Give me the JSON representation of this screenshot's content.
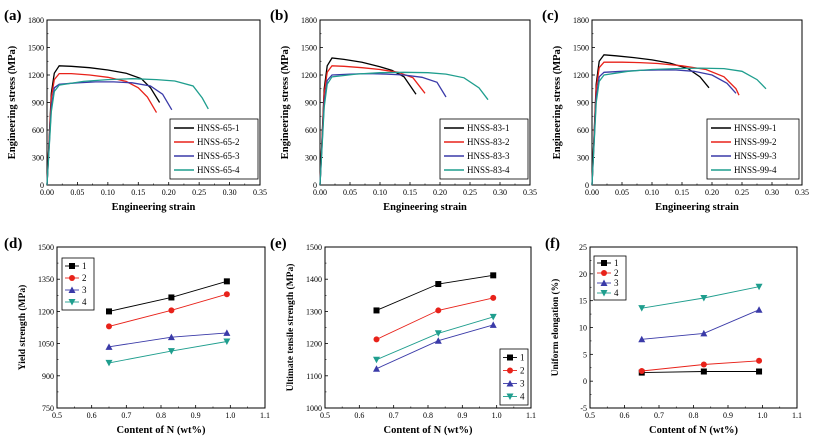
{
  "colors": {
    "black": "#000000",
    "red": "#e8221a",
    "blue": "#3a3aa8",
    "teal": "#1f9e8e",
    "navy": "#2c3e8c",
    "lightblue": "#7b8fd6"
  },
  "chart_data": [
    {
      "panel": "(a)",
      "type": "line",
      "xlabel": "Engineering strain",
      "ylabel": "Engineering stress (MPa)",
      "xlim": [
        0,
        0.35
      ],
      "ylim": [
        0,
        1800
      ],
      "xticks": [
        "0.00",
        "0.05",
        "0.10",
        "0.15",
        "0.20",
        "0.25",
        "0.30",
        "0.35"
      ],
      "yticks": [
        "0",
        "300",
        "600",
        "900",
        "1200",
        "1500",
        "1800"
      ],
      "legend_position": "lower-right",
      "series": [
        {
          "name": "HNSS-65-1",
          "color": "#000000",
          "x": [
            0,
            0.007,
            0.012,
            0.02,
            0.04,
            0.07,
            0.1,
            0.13,
            0.155,
            0.17,
            0.185
          ],
          "y": [
            0,
            1000,
            1220,
            1300,
            1295,
            1280,
            1255,
            1220,
            1160,
            1060,
            900
          ]
        },
        {
          "name": "HNSS-65-2",
          "color": "#e8221a",
          "x": [
            0,
            0.007,
            0.012,
            0.02,
            0.04,
            0.07,
            0.1,
            0.13,
            0.15,
            0.165,
            0.18
          ],
          "y": [
            0,
            950,
            1150,
            1215,
            1215,
            1200,
            1175,
            1130,
            1060,
            960,
            790
          ]
        },
        {
          "name": "HNSS-65-3",
          "color": "#3a3aa8",
          "x": [
            0,
            0.007,
            0.012,
            0.02,
            0.05,
            0.08,
            0.11,
            0.14,
            0.17,
            0.19,
            0.205
          ],
          "y": [
            0,
            850,
            1060,
            1100,
            1115,
            1125,
            1125,
            1115,
            1080,
            990,
            820
          ]
        },
        {
          "name": "HNSS-65-4",
          "color": "#1f9e8e",
          "x": [
            0,
            0.007,
            0.012,
            0.02,
            0.06,
            0.1,
            0.14,
            0.18,
            0.21,
            0.24,
            0.255,
            0.265
          ],
          "y": [
            0,
            800,
            1020,
            1090,
            1130,
            1150,
            1160,
            1150,
            1135,
            1080,
            950,
            830
          ]
        }
      ]
    },
    {
      "panel": "(b)",
      "type": "line",
      "xlabel": "Engineering strain",
      "ylabel": "Engineering stress (MPa)",
      "xlim": [
        0,
        0.35
      ],
      "ylim": [
        0,
        1800
      ],
      "xticks": [
        "0.00",
        "0.05",
        "0.10",
        "0.15",
        "0.20",
        "0.25",
        "0.30",
        "0.35"
      ],
      "yticks": [
        "0",
        "300",
        "600",
        "900",
        "1200",
        "1500",
        "1800"
      ],
      "legend_position": "lower-right",
      "series": [
        {
          "name": "HNSS-83-1",
          "color": "#000000",
          "x": [
            0,
            0.007,
            0.012,
            0.02,
            0.04,
            0.07,
            0.1,
            0.12,
            0.14,
            0.16
          ],
          "y": [
            0,
            1050,
            1300,
            1385,
            1370,
            1340,
            1290,
            1250,
            1180,
            990
          ]
        },
        {
          "name": "HNSS-83-2",
          "color": "#e8221a",
          "x": [
            0,
            0.007,
            0.012,
            0.02,
            0.04,
            0.07,
            0.1,
            0.13,
            0.155,
            0.175
          ],
          "y": [
            0,
            1000,
            1230,
            1300,
            1295,
            1280,
            1260,
            1230,
            1170,
            1000
          ]
        },
        {
          "name": "HNSS-83-3",
          "color": "#3a3aa8",
          "x": [
            0,
            0.007,
            0.012,
            0.02,
            0.05,
            0.08,
            0.11,
            0.14,
            0.17,
            0.195,
            0.21
          ],
          "y": [
            0,
            900,
            1140,
            1200,
            1210,
            1215,
            1210,
            1200,
            1175,
            1120,
            960
          ]
        },
        {
          "name": "HNSS-83-4",
          "color": "#1f9e8e",
          "x": [
            0,
            0.007,
            0.012,
            0.02,
            0.06,
            0.1,
            0.14,
            0.18,
            0.21,
            0.24,
            0.265,
            0.28
          ],
          "y": [
            0,
            850,
            1100,
            1180,
            1210,
            1225,
            1230,
            1225,
            1210,
            1170,
            1060,
            930
          ]
        }
      ]
    },
    {
      "panel": "(c)",
      "type": "line",
      "xlabel": "Engineering strain",
      "ylabel": "Engineering stress (MPa)",
      "xlim": [
        0,
        0.35
      ],
      "ylim": [
        0,
        1800
      ],
      "xticks": [
        "0.00",
        "0.05",
        "0.10",
        "0.15",
        "0.20",
        "0.25",
        "0.30",
        "0.35"
      ],
      "yticks": [
        "0",
        "300",
        "600",
        "900",
        "1200",
        "1500",
        "1800"
      ],
      "legend_position": "lower-right",
      "series": [
        {
          "name": "HNSS-99-1",
          "color": "#000000",
          "x": [
            0,
            0.007,
            0.012,
            0.02,
            0.04,
            0.07,
            0.1,
            0.13,
            0.16,
            0.18,
            0.195
          ],
          "y": [
            0,
            1100,
            1350,
            1420,
            1410,
            1390,
            1365,
            1330,
            1270,
            1180,
            1060
          ]
        },
        {
          "name": "HNSS-99-2",
          "color": "#e8221a",
          "x": [
            0,
            0.007,
            0.012,
            0.02,
            0.05,
            0.08,
            0.11,
            0.15,
            0.19,
            0.22,
            0.24,
            0.245
          ],
          "y": [
            0,
            1050,
            1280,
            1340,
            1340,
            1335,
            1325,
            1300,
            1260,
            1180,
            1050,
            980
          ]
        },
        {
          "name": "HNSS-99-3",
          "color": "#3a3aa8",
          "x": [
            0,
            0.007,
            0.012,
            0.02,
            0.05,
            0.08,
            0.11,
            0.14,
            0.17,
            0.2,
            0.225,
            0.24
          ],
          "y": [
            0,
            950,
            1180,
            1230,
            1240,
            1250,
            1255,
            1255,
            1240,
            1200,
            1110,
            1000
          ]
        },
        {
          "name": "HNSS-99-4",
          "color": "#1f9e8e",
          "x": [
            0,
            0.007,
            0.012,
            0.02,
            0.06,
            0.1,
            0.14,
            0.18,
            0.22,
            0.25,
            0.275,
            0.29
          ],
          "y": [
            0,
            900,
            1130,
            1200,
            1240,
            1260,
            1270,
            1275,
            1270,
            1240,
            1150,
            1050
          ]
        }
      ]
    },
    {
      "panel": "(d)",
      "type": "line",
      "xlabel": "Content of N (wt%)",
      "ylabel": "Yield strength (MPa)",
      "xlim": [
        0.5,
        1.1
      ],
      "ylim": [
        750,
        1500
      ],
      "xticks": [
        "0.5",
        "0.6",
        "0.7",
        "0.8",
        "0.9",
        "1.0",
        "1.1"
      ],
      "yticks": [
        "750",
        "900",
        "1050",
        "1200",
        "1350",
        "1500"
      ],
      "legend_position": "top-left",
      "series": [
        {
          "name": "1",
          "color": "#000000",
          "marker": "square",
          "x": [
            0.65,
            0.83,
            0.99
          ],
          "y": [
            1200,
            1265,
            1340
          ]
        },
        {
          "name": "2",
          "color": "#e8221a",
          "marker": "circle",
          "x": [
            0.65,
            0.83,
            0.99
          ],
          "y": [
            1130,
            1205,
            1280
          ]
        },
        {
          "name": "3",
          "color": "#3a3aa8",
          "marker": "triangle-up",
          "x": [
            0.65,
            0.83,
            0.99
          ],
          "y": [
            1035,
            1080,
            1100
          ]
        },
        {
          "name": "4",
          "color": "#1f9e8e",
          "marker": "triangle-down",
          "x": [
            0.65,
            0.83,
            0.99
          ],
          "y": [
            960,
            1015,
            1060
          ]
        }
      ]
    },
    {
      "panel": "(e)",
      "type": "line",
      "xlabel": "Content of N (wt%)",
      "ylabel": "Ultimate tensile strength (MPa)",
      "xlim": [
        0.5,
        1.1
      ],
      "ylim": [
        1000,
        1500
      ],
      "xticks": [
        "0.5",
        "0.6",
        "0.7",
        "0.8",
        "0.9",
        "1.0",
        "1.1"
      ],
      "yticks": [
        "1000",
        "1100",
        "1200",
        "1300",
        "1400",
        "1500"
      ],
      "legend_position": "lower-right",
      "series": [
        {
          "name": "1",
          "color": "#000000",
          "marker": "square",
          "x": [
            0.65,
            0.83,
            0.99
          ],
          "y": [
            1303,
            1385,
            1412
          ]
        },
        {
          "name": "2",
          "color": "#e8221a",
          "marker": "circle",
          "x": [
            0.65,
            0.83,
            0.99
          ],
          "y": [
            1213,
            1303,
            1342
          ]
        },
        {
          "name": "3",
          "color": "#3a3aa8",
          "marker": "triangle-up",
          "x": [
            0.65,
            0.83,
            0.99
          ],
          "y": [
            1122,
            1209,
            1258
          ]
        },
        {
          "name": "4",
          "color": "#1f9e8e",
          "marker": "triangle-down",
          "x": [
            0.65,
            0.83,
            0.99
          ],
          "y": [
            1150,
            1232,
            1283
          ]
        }
      ]
    },
    {
      "panel": "(f)",
      "type": "line",
      "xlabel": "Content of N (wt%)",
      "ylabel": "Uniform elongation (%)",
      "xlim": [
        0.5,
        1.1
      ],
      "ylim": [
        -5,
        25
      ],
      "xticks": [
        "0.5",
        "0.6",
        "0.7",
        "0.8",
        "0.9",
        "1.0",
        "1.1"
      ],
      "yticks": [
        "-5",
        "0",
        "5",
        "10",
        "15",
        "20",
        "25"
      ],
      "legend_position": "top-left",
      "series": [
        {
          "name": "1",
          "color": "#000000",
          "marker": "square",
          "x": [
            0.65,
            0.83,
            0.99
          ],
          "y": [
            1.6,
            1.8,
            1.8
          ]
        },
        {
          "name": "2",
          "color": "#e8221a",
          "marker": "circle",
          "x": [
            0.65,
            0.83,
            0.99
          ],
          "y": [
            1.9,
            3.1,
            3.8
          ]
        },
        {
          "name": "3",
          "color": "#3a3aa8",
          "marker": "triangle-up",
          "x": [
            0.65,
            0.83,
            0.99
          ],
          "y": [
            7.8,
            8.9,
            13.3
          ]
        },
        {
          "name": "4",
          "color": "#1f9e8e",
          "marker": "triangle-down",
          "x": [
            0.65,
            0.83,
            0.99
          ],
          "y": [
            13.6,
            15.5,
            17.6
          ]
        }
      ]
    }
  ]
}
